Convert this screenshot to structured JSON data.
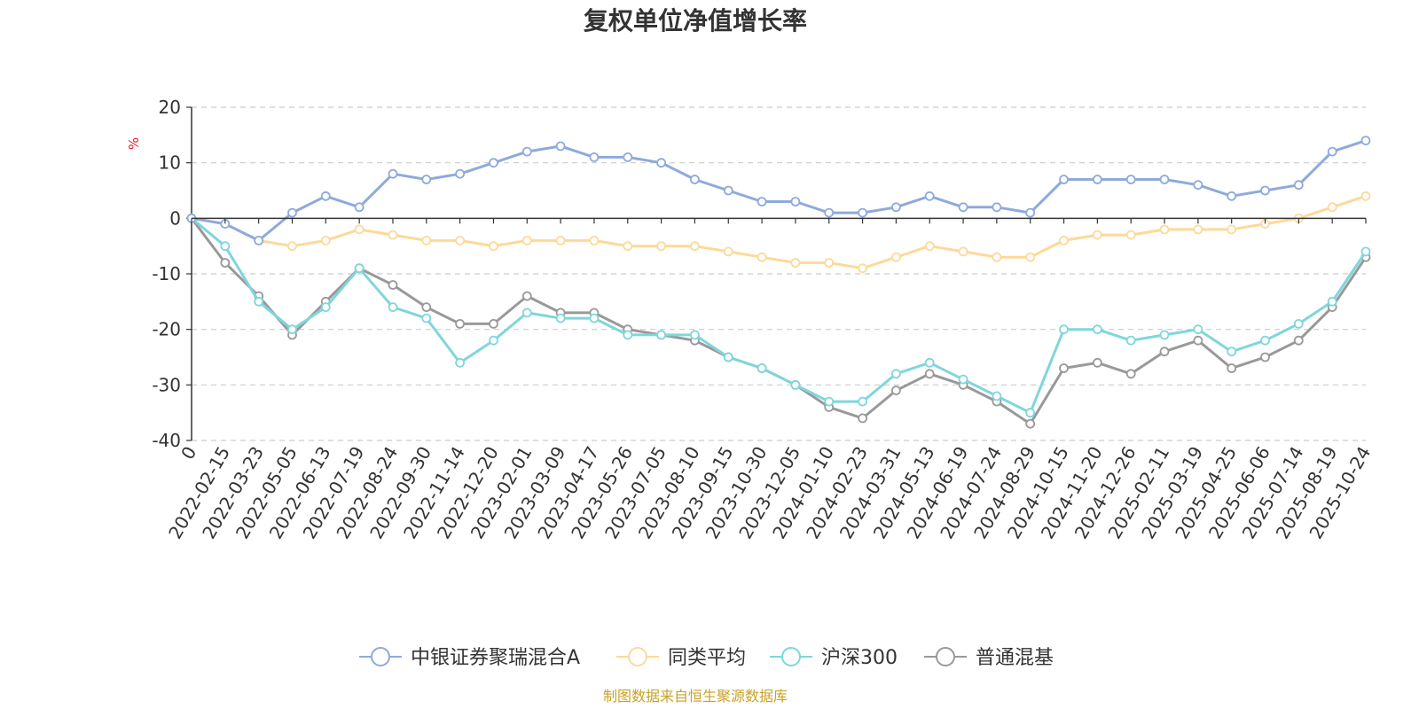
{
  "chart_data": {
    "type": "line",
    "title": "复权单位净值增长率",
    "ylabel": "%",
    "ylim": [
      -40,
      20
    ],
    "yticks": [
      20,
      10,
      0,
      -10,
      -20,
      -30,
      -40
    ],
    "x_tick_labels": [
      "0",
      "2022-02-15",
      "2022-03-23",
      "2022-05-05",
      "2022-06-13",
      "2022-07-19",
      "2022-08-24",
      "2022-09-30",
      "2022-11-14",
      "2022-12-20",
      "2023-02-01",
      "2023-03-09",
      "2023-04-17",
      "2023-05-26",
      "2023-07-05",
      "2023-08-10",
      "2023-09-15",
      "2023-10-30",
      "2023-12-05",
      "2024-01-10",
      "2024-02-23",
      "2024-03-31",
      "2024-05-13",
      "2024-06-19",
      "2024-07-24",
      "2024-08-29",
      "2024-10-15",
      "2024-11-20",
      "2024-12-26",
      "2025-02-11",
      "2025-03-19",
      "2025-04-25",
      "2025-06-06",
      "2025-07-14",
      "2025-08-19",
      "2025-10-24"
    ],
    "grid": "dashed horizontal",
    "legend": "bottom-center",
    "source": "制图数据来自恒生聚源数据库",
    "series": [
      {
        "name": "中银证券聚瑞混合A",
        "color": "#8eaadb",
        "values": [
          0,
          -1,
          -4,
          1,
          4,
          2,
          8,
          7,
          8,
          10,
          12,
          13,
          11,
          11,
          10,
          7,
          5,
          3,
          3,
          1,
          1,
          2,
          4,
          2,
          2,
          1,
          7,
          7,
          7,
          7,
          6,
          4,
          5,
          6,
          12,
          14
        ]
      },
      {
        "name": "同类平均",
        "color": "#fdd999",
        "values": [
          0,
          -1,
          -4,
          -5,
          -4,
          -2,
          -3,
          -4,
          -4,
          -5,
          -4,
          -4,
          -4,
          -5,
          -5,
          -5,
          -6,
          -7,
          -8,
          -8,
          -9,
          -7,
          -5,
          -6,
          -7,
          -7,
          -4,
          -3,
          -3,
          -2,
          -2,
          -2,
          -1,
          0,
          2,
          4
        ]
      },
      {
        "name": "沪深300",
        "color": "#7fd6dc",
        "values": [
          0,
          -5,
          -15,
          -20,
          -16,
          -9,
          -16,
          -18,
          -26,
          -22,
          -17,
          -18,
          -18,
          -21,
          -21,
          -21,
          -25,
          -27,
          -30,
          -33,
          -33,
          -28,
          -26,
          -29,
          -32,
          -35,
          -20,
          -20,
          -22,
          -21,
          -20,
          -24,
          -22,
          -19,
          -15,
          -6
        ]
      },
      {
        "name": "普通混基",
        "color": "#999999",
        "values": [
          0,
          -8,
          -14,
          -21,
          -15,
          -9,
          -12,
          -16,
          -19,
          -19,
          -14,
          -17,
          -17,
          -20,
          -21,
          -22,
          -25,
          -27,
          -30,
          -34,
          -36,
          -31,
          -28,
          -30,
          -33,
          -37,
          -27,
          -26,
          -28,
          -24,
          -22,
          -27,
          -25,
          -22,
          -16,
          -7
        ]
      }
    ]
  }
}
